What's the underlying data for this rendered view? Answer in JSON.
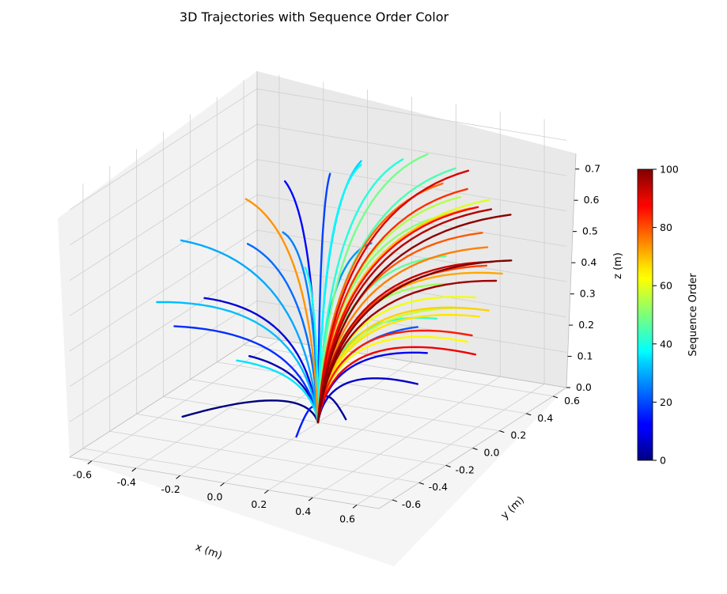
{
  "chart_data": {
    "type": "line",
    "projection": "3d",
    "title": "3D Trajectories with Sequence Order Color",
    "xlabel": "x (m)",
    "ylabel": "y (m)",
    "zlabel": "z (m)",
    "xlim": [
      -0.7,
      0.7
    ],
    "ylim": [
      -0.7,
      0.7
    ],
    "zlim": [
      0.0,
      0.75
    ],
    "x_ticks": [
      "-0.6",
      "-0.4",
      "-0.2",
      "0.0",
      "0.2",
      "0.4",
      "0.6"
    ],
    "y_ticks": [
      "-0.6",
      "-0.4",
      "-0.2",
      "0.0",
      "0.2",
      "0.4",
      "0.6"
    ],
    "z_ticks": [
      "0.0",
      "0.1",
      "0.2",
      "0.3",
      "0.4",
      "0.5",
      "0.6",
      "0.7"
    ],
    "grid": true,
    "colormap": "jet",
    "colorbar": {
      "label": "Sequence Order",
      "range": [
        0,
        100
      ],
      "ticks": [
        "0",
        "20",
        "40",
        "60",
        "80",
        "100"
      ],
      "placement": "right"
    },
    "series": [
      {
        "order": 0,
        "start": [
          0.0,
          0.0,
          0.0
        ],
        "end": [
          -0.48,
          -0.22,
          0.02
        ]
      },
      {
        "order": 3,
        "start": [
          0.0,
          0.0,
          0.0
        ],
        "end": [
          0.32,
          -0.32,
          0.12
        ]
      },
      {
        "order": 5,
        "start": [
          0.0,
          0.0,
          0.0
        ],
        "end": [
          -0.42,
          0.18,
          0.1
        ]
      },
      {
        "order": 7,
        "start": [
          0.0,
          0.0,
          0.0
        ],
        "end": [
          0.42,
          0.05,
          0.14
        ]
      },
      {
        "order": 9,
        "start": [
          0.0,
          0.0,
          0.0
        ],
        "end": [
          -0.55,
          0.06,
          0.28
        ]
      },
      {
        "order": 11,
        "start": [
          0.0,
          0.0,
          0.0
        ],
        "end": [
          0.36,
          0.22,
          0.18
        ]
      },
      {
        "order": 13,
        "start": [
          0.0,
          0.0,
          0.0
        ],
        "end": [
          -0.38,
          0.38,
          0.55
        ]
      },
      {
        "order": 15,
        "start": [
          0.0,
          0.0,
          0.0
        ],
        "end": [
          0.12,
          -0.36,
          0.06
        ]
      },
      {
        "order": 17,
        "start": [
          0.0,
          0.0,
          0.0
        ],
        "end": [
          -0.62,
          -0.05,
          0.22
        ]
      },
      {
        "order": 19,
        "start": [
          0.0,
          0.0,
          0.0
        ],
        "end": [
          -0.2,
          0.42,
          0.58
        ]
      },
      {
        "order": 21,
        "start": [
          0.0,
          0.0,
          0.0
        ],
        "end": [
          0.22,
          0.38,
          0.2
        ]
      },
      {
        "order": 23,
        "start": [
          0.0,
          0.0,
          0.0
        ],
        "end": [
          -0.5,
          0.3,
          0.38
        ]
      },
      {
        "order": 25,
        "start": [
          0.0,
          0.0,
          0.0
        ],
        "end": [
          -0.28,
          0.2,
          0.46
        ]
      },
      {
        "order": 27,
        "start": [
          0.0,
          0.0,
          0.0
        ],
        "end": [
          0.06,
          0.3,
          0.44
        ]
      },
      {
        "order": 29,
        "start": [
          0.0,
          0.0,
          0.0
        ],
        "end": [
          -0.68,
          0.1,
          0.42
        ]
      },
      {
        "order": 31,
        "start": [
          0.0,
          0.0,
          0.0
        ],
        "end": [
          -0.62,
          -0.18,
          0.32
        ]
      },
      {
        "order": 33,
        "start": [
          0.0,
          0.0,
          0.0
        ],
        "end": [
          -0.12,
          0.52,
          0.6
        ]
      },
      {
        "order": 35,
        "start": [
          0.0,
          0.0,
          0.0
        ],
        "end": [
          -0.44,
          0.12,
          0.1
        ]
      },
      {
        "order": 37,
        "start": [
          0.0,
          0.0,
          0.0
        ],
        "end": [
          -0.06,
          0.42,
          0.62
        ]
      },
      {
        "order": 39,
        "start": [
          0.0,
          0.0,
          0.0
        ],
        "end": [
          -0.24,
          0.3,
          0.34
        ]
      },
      {
        "order": 41,
        "start": [
          0.0,
          0.0,
          0.0
        ],
        "end": [
          0.02,
          0.6,
          0.6
        ]
      },
      {
        "order": 43,
        "start": [
          0.0,
          0.0,
          0.0
        ],
        "end": [
          0.44,
          0.16,
          0.3
        ]
      },
      {
        "order": 45,
        "start": [
          0.0,
          0.0,
          0.0
        ],
        "end": [
          0.22,
          0.66,
          0.58
        ]
      },
      {
        "order": 47,
        "start": [
          0.0,
          0.0,
          0.0
        ],
        "end": [
          0.36,
          0.36,
          0.42
        ]
      },
      {
        "order": 49,
        "start": [
          0.0,
          0.0,
          0.0
        ],
        "end": [
          0.12,
          0.62,
          0.62
        ]
      },
      {
        "order": 51,
        "start": [
          0.0,
          0.0,
          0.0
        ],
        "end": [
          0.3,
          0.5,
          0.5
        ]
      },
      {
        "order": 53,
        "start": [
          0.0,
          0.0,
          0.0
        ],
        "end": [
          0.4,
          0.3,
          0.36
        ]
      },
      {
        "order": 55,
        "start": [
          0.0,
          0.0,
          0.0
        ],
        "end": [
          0.28,
          0.6,
          0.52
        ]
      },
      {
        "order": 57,
        "start": [
          0.0,
          0.0,
          0.0
        ],
        "end": [
          0.48,
          0.3,
          0.3
        ]
      },
      {
        "order": 59,
        "start": [
          0.0,
          0.0,
          0.0
        ],
        "end": [
          0.4,
          0.62,
          0.52
        ]
      },
      {
        "order": 61,
        "start": [
          0.0,
          0.0,
          0.0
        ],
        "end": [
          0.58,
          0.22,
          0.36
        ]
      },
      {
        "order": 63,
        "start": [
          0.0,
          0.0,
          0.0
        ],
        "end": [
          0.64,
          0.06,
          0.28
        ]
      },
      {
        "order": 65,
        "start": [
          0.0,
          0.0,
          0.0
        ],
        "end": [
          0.62,
          0.18,
          0.32
        ]
      },
      {
        "order": 67,
        "start": [
          0.0,
          0.0,
          0.0
        ],
        "end": [
          0.7,
          0.12,
          0.36
        ]
      },
      {
        "order": 69,
        "start": [
          0.0,
          0.0,
          0.0
        ],
        "end": [
          0.34,
          0.58,
          0.5
        ]
      },
      {
        "order": 71,
        "start": [
          0.0,
          0.0,
          0.0
        ],
        "end": [
          0.7,
          0.22,
          0.44
        ]
      },
      {
        "order": 73,
        "start": [
          0.0,
          0.0,
          0.0
        ],
        "end": [
          -0.52,
          0.32,
          0.5
        ]
      },
      {
        "order": 75,
        "start": [
          0.0,
          0.0,
          0.0
        ],
        "end": [
          0.5,
          0.44,
          0.44
        ]
      },
      {
        "order": 77,
        "start": [
          0.0,
          0.0,
          0.0
        ],
        "end": [
          0.2,
          0.6,
          0.55
        ]
      },
      {
        "order": 79,
        "start": [
          0.0,
          0.0,
          0.0
        ],
        "end": [
          0.44,
          0.5,
          0.46
        ]
      },
      {
        "order": 81,
        "start": [
          0.0,
          0.0,
          0.0
        ],
        "end": [
          0.52,
          0.4,
          0.4
        ]
      },
      {
        "order": 83,
        "start": [
          0.0,
          0.0,
          0.0
        ],
        "end": [
          0.3,
          0.62,
          0.54
        ]
      },
      {
        "order": 85,
        "start": [
          0.0,
          0.0,
          0.0
        ],
        "end": [
          0.66,
          0.06,
          0.3
        ]
      },
      {
        "order": 87,
        "start": [
          0.0,
          0.0,
          0.0
        ],
        "end": [
          0.36,
          0.6,
          0.5
        ]
      },
      {
        "order": 89,
        "start": [
          0.0,
          0.0,
          0.0
        ],
        "end": [
          0.7,
          0.02,
          0.26
        ]
      },
      {
        "order": 91,
        "start": [
          0.0,
          0.0,
          0.0
        ],
        "end": [
          0.28,
          0.66,
          0.58
        ]
      },
      {
        "order": 93,
        "start": [
          0.0,
          0.0,
          0.0
        ],
        "end": [
          0.56,
          0.38,
          0.42
        ]
      },
      {
        "order": 95,
        "start": [
          0.0,
          0.0,
          0.0
        ],
        "end": [
          0.42,
          0.6,
          0.5
        ]
      },
      {
        "order": 97,
        "start": [
          0.0,
          0.0,
          0.0
        ],
        "end": [
          0.6,
          0.34,
          0.38
        ]
      },
      {
        "order": 99,
        "start": [
          0.0,
          0.0,
          0.0
        ],
        "end": [
          0.52,
          0.58,
          0.5
        ]
      },
      {
        "order": 100,
        "start": [
          0.0,
          0.0,
          0.0
        ],
        "end": [
          0.62,
          0.42,
          0.42
        ]
      }
    ]
  }
}
